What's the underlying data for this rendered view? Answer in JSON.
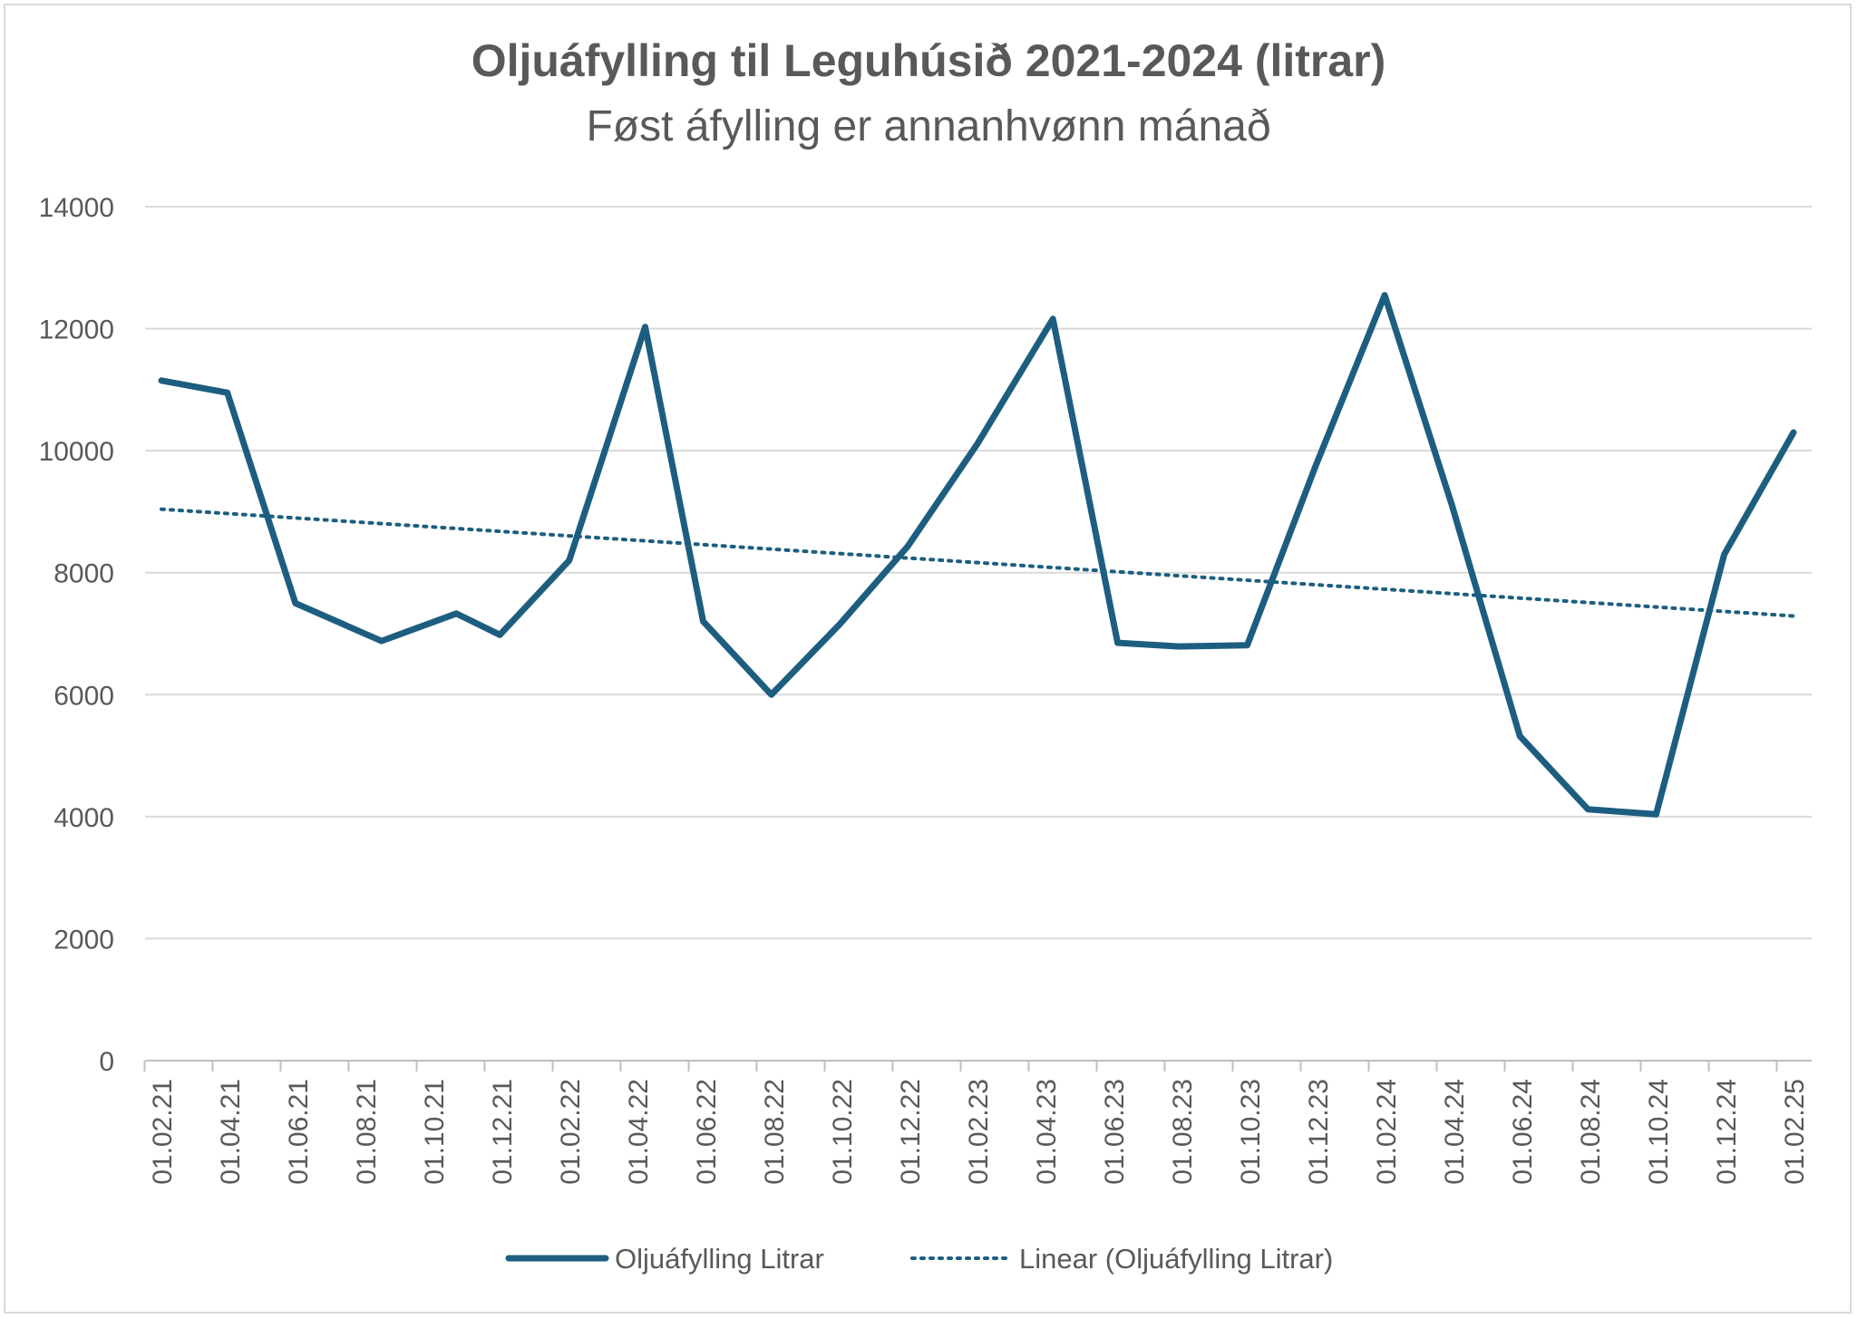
{
  "chart_data": {
    "type": "line",
    "title": "Oljuáfylling til Leguhúsið 2021-2024 (litrar)",
    "subtitle": "Føst áfylling er annanhvønn mánað",
    "xlabel": "",
    "ylabel": "",
    "ylim": [
      0,
      14000
    ],
    "yticks": [
      0,
      2000,
      4000,
      6000,
      8000,
      10000,
      12000,
      14000
    ],
    "x_tick_labels": [
      "01.02.21",
      "01.04.21",
      "01.06.21",
      "01.08.21",
      "01.10.21",
      "01.12.21",
      "01.02.22",
      "01.04.22",
      "01.06.22",
      "01.08.22",
      "01.10.22",
      "01.12.22",
      "01.02.23",
      "01.04.23",
      "01.06.23",
      "01.08.23",
      "01.10.23",
      "01.12.23",
      "01.02.24",
      "01.04.24",
      "01.06.24",
      "01.08.24",
      "01.10.24",
      "01.12.24",
      "01.02.25"
    ],
    "grid": true,
    "legend_position": "bottom",
    "series": [
      {
        "name": "Oljuáfylling Litrar",
        "color": "#1d5e80",
        "style": "solid",
        "x": [
          "2021-02-01",
          "2021-04-01",
          "2021-06-01",
          "2021-08-17",
          "2021-10-23",
          "2021-12-01",
          "2022-02-01",
          "2022-04-10",
          "2022-06-01",
          "2022-08-01",
          "2022-10-01",
          "2022-12-01",
          "2023-02-01",
          "2023-04-10",
          "2023-06-07",
          "2023-08-01",
          "2023-10-01",
          "2023-12-01",
          "2024-02-01",
          "2024-04-01",
          "2024-06-01",
          "2024-08-01",
          "2024-10-01",
          "2024-12-01",
          "2025-02-01"
        ],
        "values": [
          11150,
          10950,
          7500,
          6880,
          7330,
          6980,
          8200,
          12030,
          7200,
          6000,
          7150,
          8430,
          10100,
          12160,
          6850,
          6790,
          6810,
          9740,
          12550,
          9120,
          5320,
          4120,
          4040,
          8300,
          10300
        ]
      },
      {
        "name": "Linear (Oljuáfylling Litrar)",
        "color": "#1d5e80",
        "style": "dotted",
        "x": [
          "2021-02-01",
          "2025-02-01"
        ],
        "values": [
          9040,
          7290
        ]
      }
    ]
  }
}
